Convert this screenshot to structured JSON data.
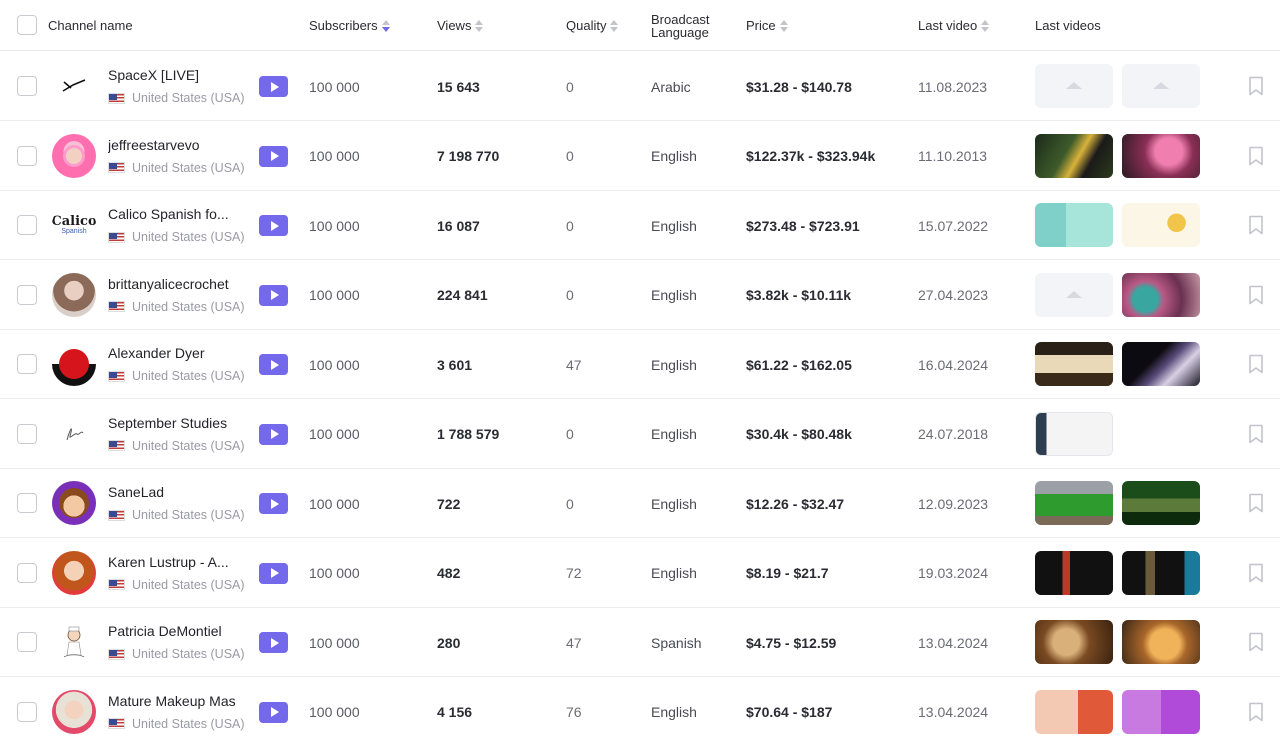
{
  "header": {
    "channel_name": "Channel name",
    "subscribers": "Subscribers",
    "views": "Views",
    "quality": "Quality",
    "broadcast_language_1": "Broadcast",
    "broadcast_language_2": "Language",
    "price": "Price",
    "last_video": "Last video",
    "last_videos": "Last videos"
  },
  "rows": [
    {
      "name": "SpaceX [LIVE]",
      "country": "United States (USA)",
      "subscribers": "100 000",
      "views": "15 643",
      "quality": "0",
      "language": "Arabic",
      "price": "$31.28 - $140.78",
      "last_video": "11.08.2023"
    },
    {
      "name": "jeffreestarvevo",
      "country": "United States (USA)",
      "subscribers": "100 000",
      "views": "7 198 770",
      "quality": "0",
      "language": "English",
      "price": "$122.37k - $323.94k",
      "last_video": "11.10.2013"
    },
    {
      "name": "Calico Spanish fo...",
      "country": "United States (USA)",
      "subscribers": "100 000",
      "views": "16 087",
      "quality": "0",
      "language": "English",
      "price": "$273.48 - $723.91",
      "last_video": "15.07.2022"
    },
    {
      "name": "brittanyalicecrochet",
      "country": "United States (USA)",
      "subscribers": "100 000",
      "views": "224 841",
      "quality": "0",
      "language": "English",
      "price": "$3.82k - $10.11k",
      "last_video": "27.04.2023"
    },
    {
      "name": "Alexander Dyer",
      "country": "United States (USA)",
      "subscribers": "100 000",
      "views": "3 601",
      "quality": "47",
      "language": "English",
      "price": "$61.22 - $162.05",
      "last_video": "16.04.2024"
    },
    {
      "name": "September Studies",
      "country": "United States (USA)",
      "subscribers": "100 000",
      "views": "1 788 579",
      "quality": "0",
      "language": "English",
      "price": "$30.4k - $80.48k",
      "last_video": "24.07.2018"
    },
    {
      "name": "SaneLad",
      "country": "United States (USA)",
      "subscribers": "100 000",
      "views": "722",
      "quality": "0",
      "language": "English",
      "price": "$12.26 - $32.47",
      "last_video": "12.09.2023"
    },
    {
      "name": "Karen Lustrup - A...",
      "country": "United States (USA)",
      "subscribers": "100 000",
      "views": "482",
      "quality": "72",
      "language": "English",
      "price": "$8.19 - $21.7",
      "last_video": "19.03.2024"
    },
    {
      "name": "Patricia DeMontiel",
      "country": "United States (USA)",
      "subscribers": "100 000",
      "views": "280",
      "quality": "47",
      "language": "Spanish",
      "price": "$4.75 - $12.59",
      "last_video": "13.04.2024"
    },
    {
      "name": "Mature Makeup Mas",
      "country": "United States (USA)",
      "subscribers": "100 000",
      "views": "4 156",
      "quality": "76",
      "language": "English",
      "price": "$70.64 - $187",
      "last_video": "13.04.2024"
    }
  ],
  "logo_text": {
    "calico": "Calico",
    "calico_sub": "Spanish"
  },
  "colors": {
    "accent": "#7469ea",
    "sort_active": "#6f6ae8"
  }
}
